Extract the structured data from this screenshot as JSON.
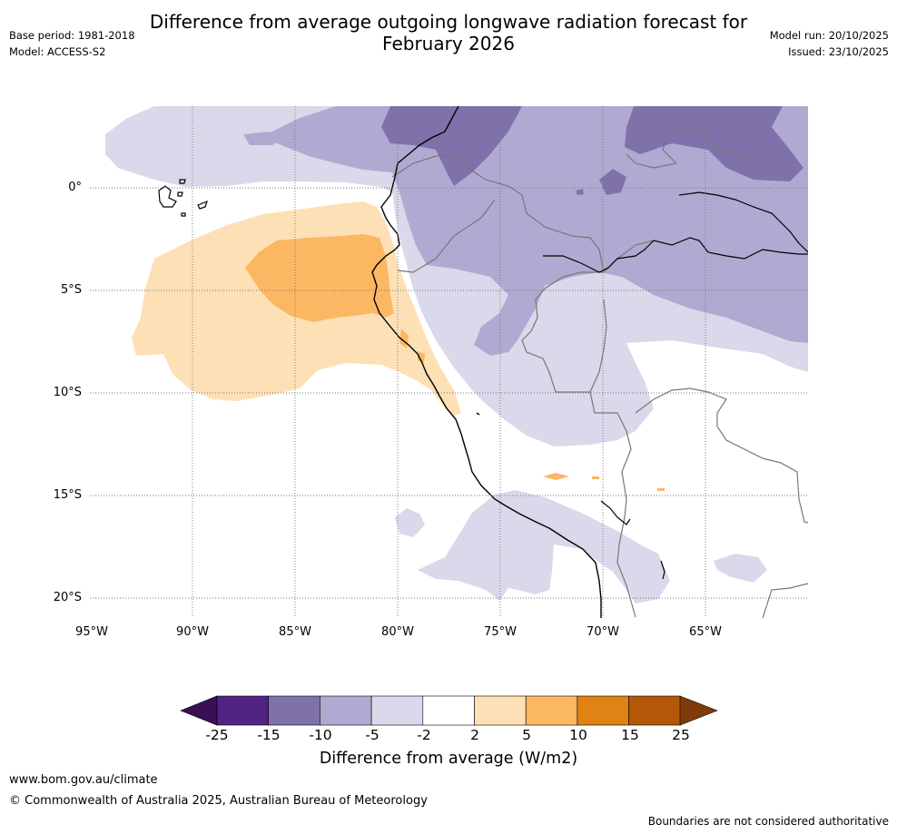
{
  "title_line1": "Difference from average outgoing longwave radiation forecast for",
  "title_line2": "February 2026",
  "meta": {
    "base_period": "Base period: 1981-2018",
    "model": "Model: ACCESS-S2",
    "model_run": "Model run: 20/10/2025",
    "issued": "Issued: 23/10/2025"
  },
  "map": {
    "lat_labels": [
      "0°",
      "5°S",
      "10°S",
      "15°S",
      "20°S"
    ],
    "lon_labels": [
      "95°W",
      "90°W",
      "85°W",
      "80°W",
      "75°W",
      "70°W",
      "65°W"
    ]
  },
  "colorbar": {
    "title": "Difference from average (W/m2)",
    "tick_labels": [
      "-25",
      "-15",
      "-10",
      "-5",
      "-2",
      "2",
      "5",
      "10",
      "15",
      "25"
    ],
    "colors": {
      "under": "#3b0f55",
      "bins": [
        "#512383",
        "#7f72ab",
        "#b0aad2",
        "#d9d9eb",
        "#ffffff",
        "#fee0b6",
        "#fbb762",
        "#e08214",
        "#b35806"
      ],
      "over": "#7f3b08"
    }
  },
  "footer": {
    "url": "www.bom.gov.au/climate",
    "copyright": "© Commonwealth of Australia 2025, Australian Bureau of Meteorology",
    "note": "Boundaries are not considered authoritative"
  }
}
